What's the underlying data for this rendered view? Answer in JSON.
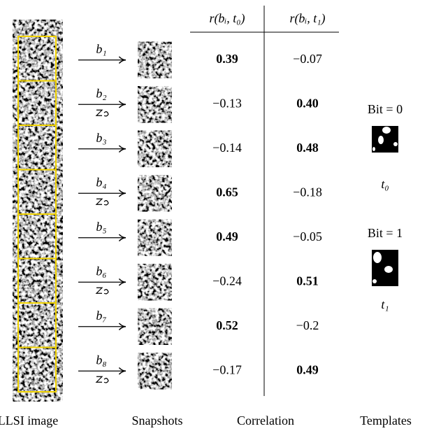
{
  "table": {
    "columns": [
      "r(bᵢ, t₀)",
      "r(bᵢ, t₁)"
    ],
    "rows": [
      {
        "label": "b₁",
        "flipped": false,
        "values": [
          "0.39",
          "−0.07"
        ],
        "bold": 0
      },
      {
        "label": "b₂",
        "flipped": true,
        "values": [
          "−0.13",
          "0.40"
        ],
        "bold": 1
      },
      {
        "label": "b₃",
        "flipped": false,
        "values": [
          "−0.14",
          "0.48"
        ],
        "bold": 1
      },
      {
        "label": "b₄",
        "flipped": true,
        "values": [
          "0.65",
          "−0.18"
        ],
        "bold": 0
      },
      {
        "label": "b₅",
        "flipped": false,
        "values": [
          "0.49",
          "−0.05"
        ],
        "bold": 0
      },
      {
        "label": "b₆",
        "flipped": true,
        "values": [
          "−0.24",
          "0.51"
        ],
        "bold": 1
      },
      {
        "label": "b₇",
        "flipped": false,
        "values": [
          "0.52",
          "−0.2"
        ],
        "bold": 0
      },
      {
        "label": "b₈",
        "flipped": true,
        "values": [
          "−0.17",
          "0.49"
        ],
        "bold": 1
      }
    ]
  },
  "templates": [
    {
      "title": "Bit = 0",
      "name": "t₀"
    },
    {
      "title": "Bit = 1",
      "name": "t₁"
    }
  ],
  "captions": [
    "LLSI image",
    "Snapshots",
    "Correlation",
    "Templates"
  ]
}
